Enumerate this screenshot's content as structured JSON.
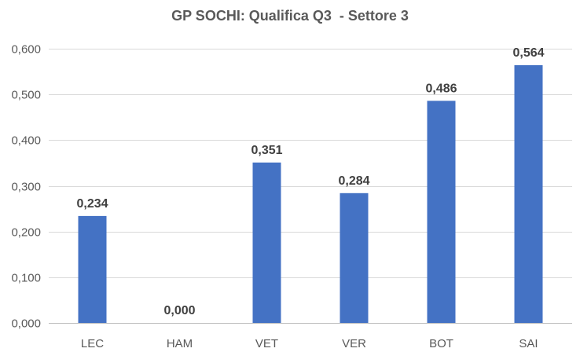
{
  "chart_data": {
    "type": "bar",
    "title": "GP SOCHI: Qualifica Q3  - Settore 3",
    "xlabel": "",
    "ylabel": "",
    "categories": [
      "LEC",
      "HAM",
      "VET",
      "VER",
      "BOT",
      "SAI"
    ],
    "values": [
      0.234,
      0.0,
      0.351,
      0.284,
      0.486,
      0.564
    ],
    "value_labels": [
      "0,234",
      "0,000",
      "0,351",
      "0,284",
      "0,486",
      "0,564"
    ],
    "ylim": [
      0,
      0.6
    ],
    "y_ticks": [
      0,
      0.1,
      0.2,
      0.3,
      0.4,
      0.5,
      0.6
    ],
    "y_tick_labels": [
      "0,000",
      "0,100",
      "0,200",
      "0,300",
      "0,400",
      "0,500",
      "0,600"
    ],
    "grid": true,
    "legend": "none",
    "colors": {
      "bar": "#4472C4",
      "grid": "#D9D9D9",
      "text": "#595959"
    }
  }
}
